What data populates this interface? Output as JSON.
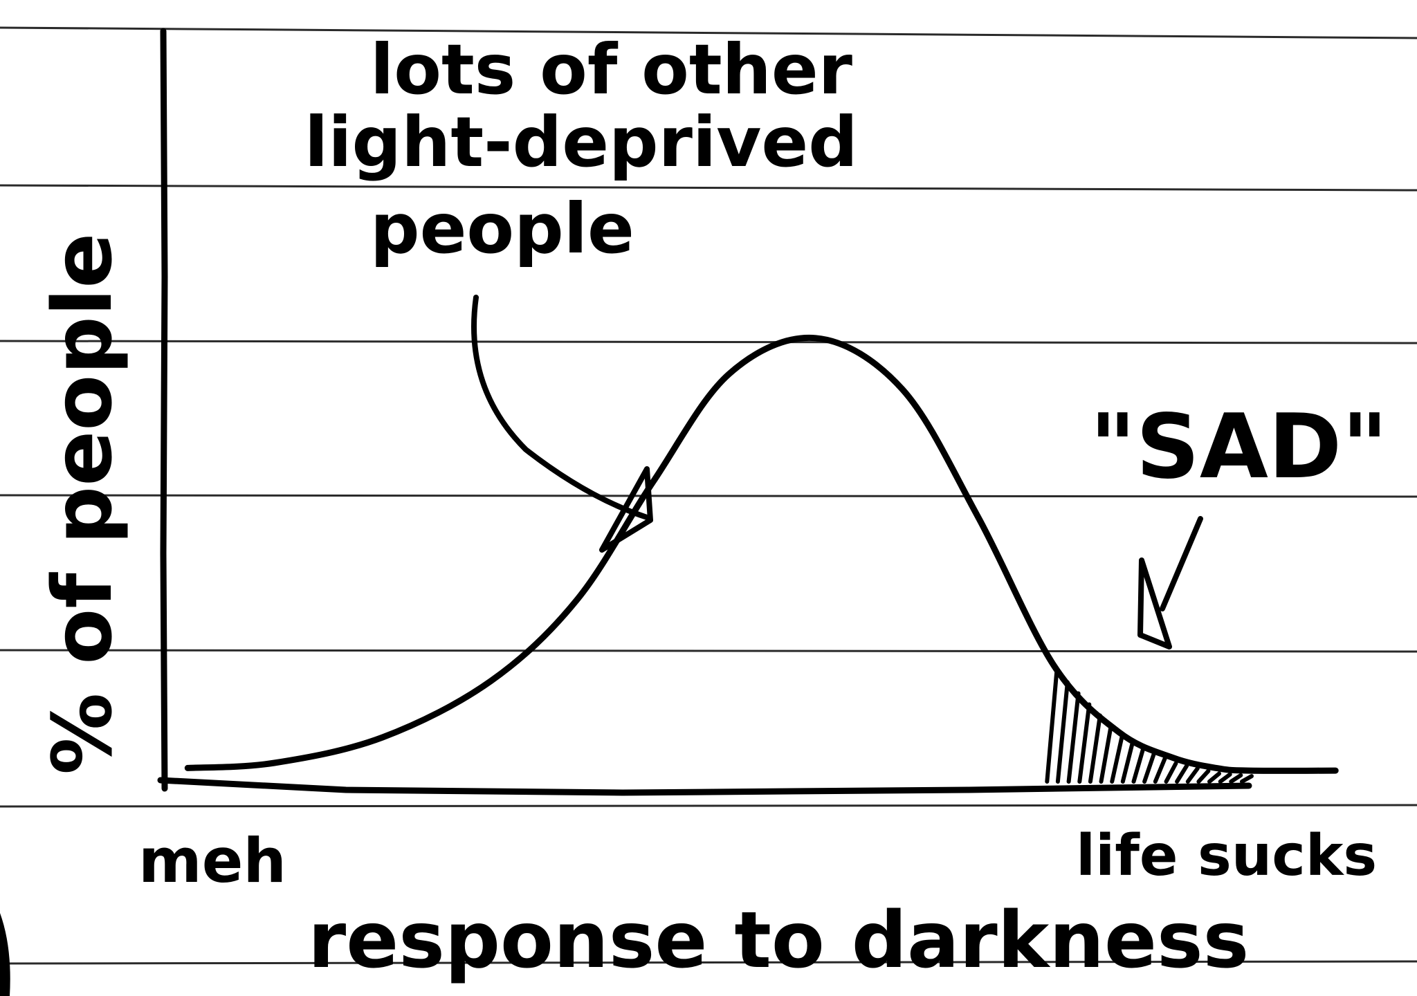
{
  "chart_data": {
    "type": "line",
    "title": "",
    "xlabel": "response to darkness",
    "ylabel": "% of people",
    "x_tick_labels": {
      "left": "meh",
      "right": "life sucks"
    },
    "annotations": {
      "majority": "lots of other light-deprived people",
      "tail": "\"SAD\""
    },
    "xlim": [
      0,
      10
    ],
    "ylim": [
      0,
      10
    ],
    "series": [
      {
        "x": [
          0.2,
          1.0,
          2.0,
          3.0,
          3.8,
          4.5,
          5.2,
          6.0,
          6.8,
          7.5,
          8.2,
          8.8,
          9.3,
          9.7,
          10.0,
          10.8
        ],
        "y": [
          0.4,
          0.5,
          1.0,
          2.1,
          3.7,
          6.0,
          8.1,
          8.8,
          7.8,
          5.3,
          2.4,
          1.1,
          0.6,
          0.4,
          0.35,
          0.35
        ]
      }
    ],
    "shaded_region": {
      "x_from": 8.2,
      "x_to": 10.0
    },
    "grid": false,
    "legend": "none"
  },
  "colors": {
    "ink": "#000000",
    "paper": "#ffffff",
    "ruling": "#2a2a2a"
  }
}
